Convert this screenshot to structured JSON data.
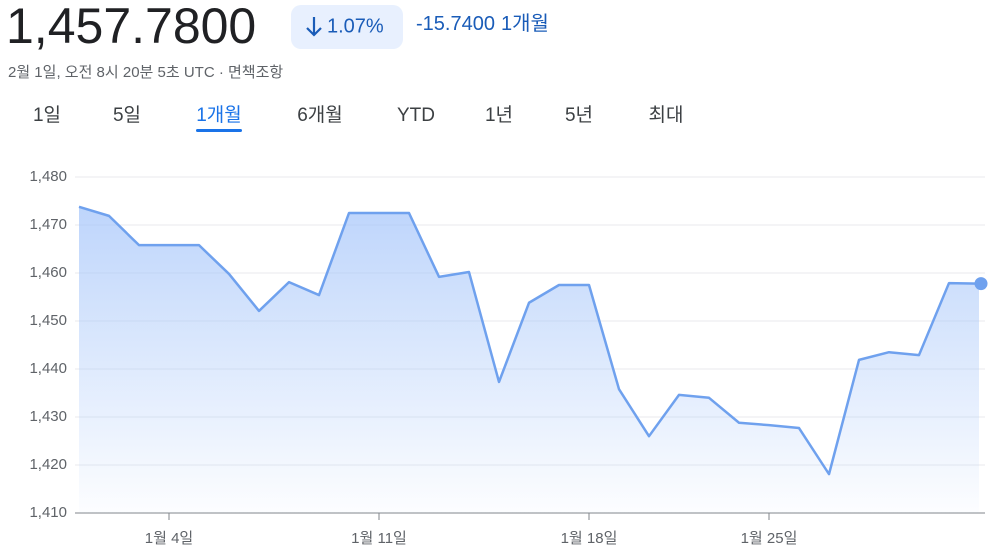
{
  "header": {
    "price": "1,457.7800",
    "change_percent": "1.07%",
    "change": "-15.7400",
    "period": "1개월",
    "subtitle": "2월 1일, 오전 8시 20분 5초 UTC · 면책조항",
    "tabs": [
      "1일",
      "5일",
      "1개월",
      "6개월",
      "YTD",
      "1년",
      "5년",
      "최대"
    ],
    "active_tab": 2
  },
  "chart_data": {
    "type": "line",
    "categories": [
      null,
      null,
      null,
      "1월 4일",
      null,
      null,
      null,
      null,
      null,
      null,
      "1월 11일",
      null,
      null,
      null,
      null,
      null,
      null,
      "1월 18일",
      null,
      null,
      null,
      null,
      null,
      "1월 25일",
      null,
      null,
      null,
      null,
      null,
      null,
      null
    ],
    "series": [
      {
        "color": "#6fa1ee",
        "values": [
          1473.8,
          1471.9,
          1465.8,
          1465.8,
          1465.8,
          1459.8,
          1452.1,
          1458.1,
          1455.4,
          1472.5,
          1472.5,
          1472.5,
          1459.2,
          1460.2,
          1437.3,
          1453.8,
          1457.5,
          1457.5,
          1435.8,
          1426.0,
          1434.6,
          1434.0,
          1428.8,
          1428.3,
          1427.7,
          1418.1,
          1441.9,
          1443.5,
          1442.9,
          1457.9,
          1457.78
        ]
      }
    ],
    "ylim": [
      1410,
      1485
    ],
    "yticks": [
      {
        "value": 1410,
        "label": "1,410"
      },
      {
        "value": 1420,
        "label": "1,420"
      },
      {
        "value": 1430,
        "label": "1,430"
      },
      {
        "value": 1440,
        "label": "1,440"
      },
      {
        "value": 1450,
        "label": "1,450"
      },
      {
        "value": 1460,
        "label": "1,460"
      },
      {
        "value": 1470,
        "label": "1,470"
      },
      {
        "value": 1480,
        "label": "1,480"
      }
    ],
    "grid": true
  }
}
